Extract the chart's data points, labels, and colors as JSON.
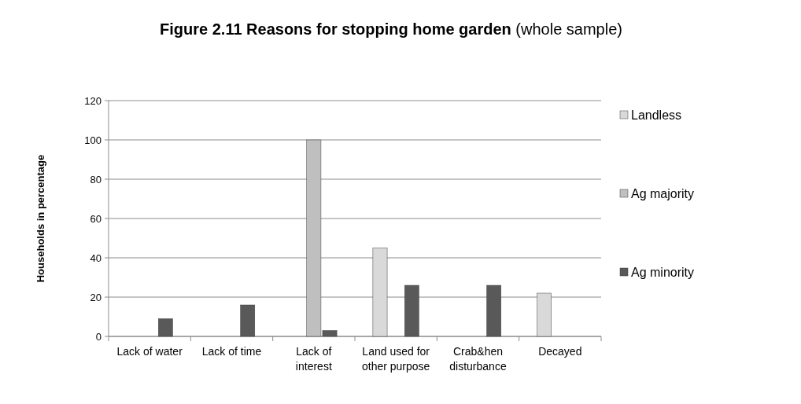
{
  "chart_data": {
    "type": "bar",
    "title": "Figure 2.11 Reasons for stopping home garden (whole sample)",
    "ylabel": "Households in percentage",
    "categories": [
      "Lack of water",
      "Lack of time",
      "Lack of interest",
      "Land used for other purpose",
      "Crab&hen disturbance",
      "Decayed"
    ],
    "series": [
      {
        "name": "Landless",
        "color": "#d9d9d9",
        "values": [
          0,
          0,
          0,
          45,
          0,
          22
        ]
      },
      {
        "name": "Ag majority",
        "color": "#bfbfbf",
        "values": [
          0,
          0,
          100,
          0,
          0,
          0
        ]
      },
      {
        "name": "Ag minority",
        "color": "#595959",
        "values": [
          9,
          16,
          3,
          26,
          26,
          0
        ]
      }
    ],
    "ylim": [
      0,
      120
    ],
    "yticks": [
      0,
      20,
      40,
      60,
      80,
      100,
      120
    ],
    "grid": "y",
    "legend": "right"
  }
}
